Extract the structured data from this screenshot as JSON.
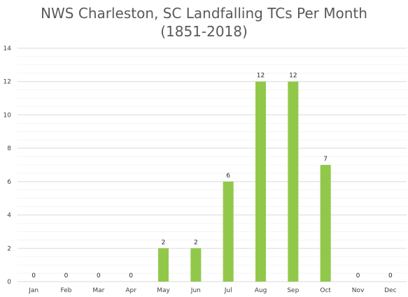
{
  "chart_data": {
    "type": "bar",
    "title_line1": "NWS Charleston, SC Landfalling TCs Per Month",
    "title_line2": "(1851-2018)",
    "xlabel": "",
    "ylabel": "",
    "categories": [
      "Jan",
      "Feb",
      "Mar",
      "Apr",
      "May",
      "Jun",
      "Jul",
      "Aug",
      "Sep",
      "Oct",
      "Nov",
      "Dec"
    ],
    "values": [
      0,
      0,
      0,
      0,
      2,
      2,
      6,
      12,
      12,
      7,
      0,
      0
    ],
    "ylim": [
      0,
      14
    ],
    "yticks": [
      0,
      2,
      4,
      6,
      8,
      10,
      12,
      14
    ],
    "minor_grid_step": 0.5,
    "grid": true,
    "legend": "none",
    "data_labels": true,
    "bar_color": "#92c84a",
    "major_grid_color": "#d9d9d9",
    "minor_grid_color": "#ededed"
  }
}
